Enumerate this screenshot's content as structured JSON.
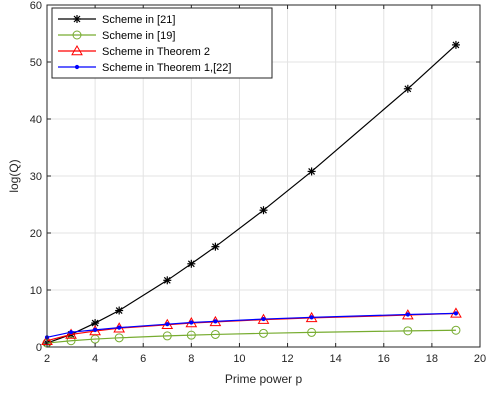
{
  "chart_data": {
    "type": "line",
    "xlabel": "Prime power p",
    "ylabel": "log(Q)",
    "xlim": [
      2,
      20
    ],
    "ylim": [
      0,
      60
    ],
    "xticks": [
      2,
      4,
      6,
      8,
      10,
      12,
      14,
      16,
      18,
      20
    ],
    "yticks": [
      0,
      10,
      20,
      30,
      40,
      50,
      60
    ],
    "grid": true,
    "legend_position": "top-left",
    "series": [
      {
        "name": "Scheme in [21]",
        "color": "#000000",
        "marker": "asterisk",
        "x": [
          2,
          3,
          4,
          5,
          7,
          8,
          9,
          11,
          13,
          17,
          19
        ],
        "y": [
          0.7,
          2.2,
          4.2,
          6.4,
          11.7,
          14.6,
          17.6,
          24.0,
          30.8,
          45.3,
          53.0
        ]
      },
      {
        "name": "Scheme in [19]",
        "color": "#77ac30",
        "marker": "circle",
        "x": [
          2,
          3,
          4,
          5,
          7,
          8,
          9,
          11,
          13,
          17,
          19
        ],
        "y": [
          0.69,
          1.1,
          1.39,
          1.61,
          1.95,
          2.08,
          2.2,
          2.4,
          2.56,
          2.83,
          2.94
        ]
      },
      {
        "name": "Scheme in Theorem 2",
        "color": "#ff0000",
        "marker": "triangle",
        "x": [
          2,
          3,
          4,
          5,
          7,
          8,
          9,
          11,
          13,
          17,
          19
        ],
        "y": [
          1.1,
          2.2,
          2.8,
          3.3,
          3.9,
          4.2,
          4.4,
          4.8,
          5.1,
          5.6,
          5.9
        ]
      },
      {
        "name": "Scheme in Theorem 1,[22]",
        "color": "#0000ff",
        "marker": "dot",
        "x": [
          2,
          3,
          4,
          5,
          7,
          8,
          9,
          11,
          13,
          17,
          19
        ],
        "y": [
          1.7,
          2.6,
          3.0,
          3.4,
          4.0,
          4.3,
          4.5,
          4.9,
          5.2,
          5.7,
          5.9
        ]
      }
    ]
  }
}
